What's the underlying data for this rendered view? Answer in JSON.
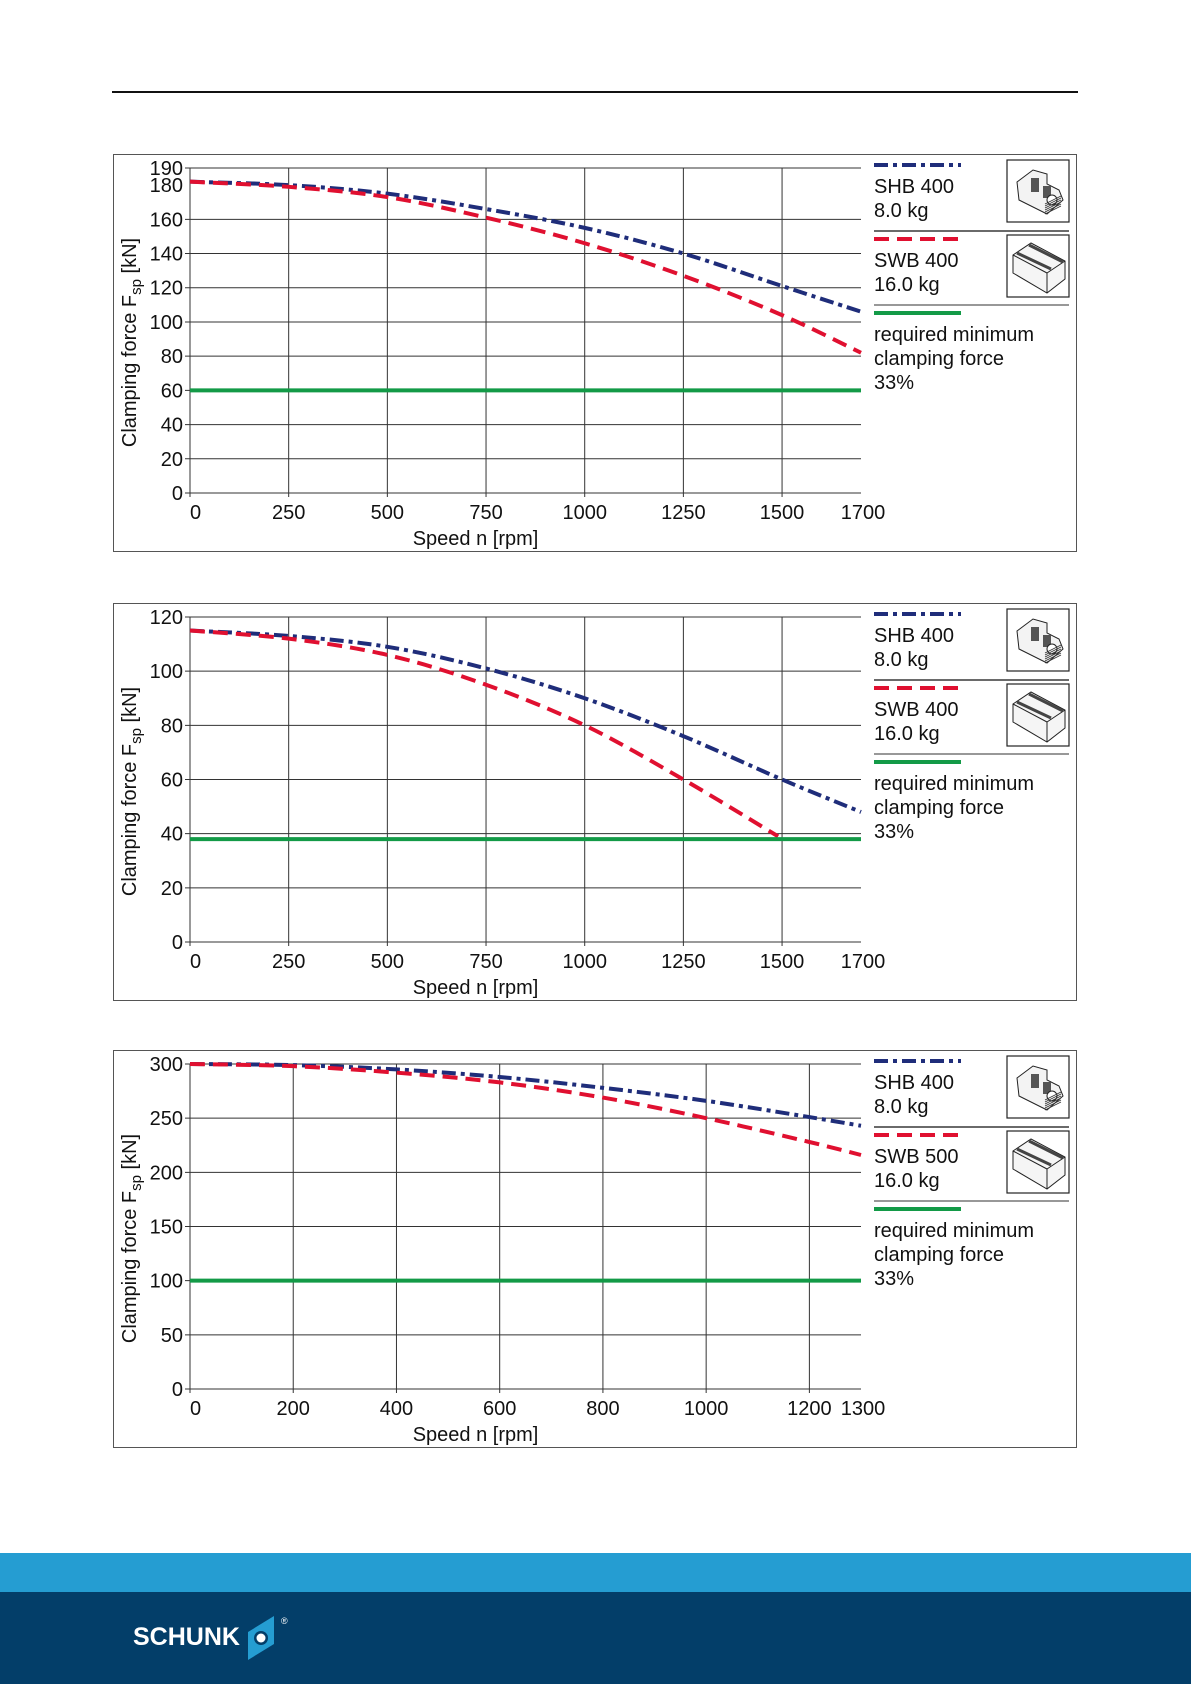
{
  "colors": {
    "shb": "#1f2d7a",
    "swb": "#e01030",
    "min": "#139a47",
    "grid": "#333333",
    "footer_light": "#259dd2",
    "footer_dark": "#033e69"
  },
  "footer": {
    "brand": "SCHUNK",
    "registered": "®"
  },
  "chart_data": [
    {
      "type": "line",
      "title": "",
      "xlabel": "Speed n [rpm]",
      "ylabel_main": "Clamping force F",
      "ylabel_sub": "sp",
      "ylabel_unit": " [kN]",
      "xlim": [
        0,
        1700
      ],
      "ylim": [
        0,
        190
      ],
      "xticks": [
        0,
        250,
        500,
        750,
        1000,
        1250,
        1500,
        1700
      ],
      "yticks": [
        0,
        20,
        40,
        60,
        80,
        100,
        120,
        140,
        160,
        180,
        190
      ],
      "ygrid": [
        0,
        20,
        40,
        60,
        80,
        100,
        120,
        140,
        160,
        190
      ],
      "grid": true,
      "legend_position": "right",
      "series": [
        {
          "name": "SHB 400",
          "weight": "8.0 kg",
          "style": "dash-dot",
          "icon": "hard-jaw-icon",
          "x": [
            0,
            250,
            500,
            750,
            1000,
            1250,
            1500,
            1700
          ],
          "values": [
            182,
            180,
            175,
            166,
            155,
            140,
            121,
            106
          ]
        },
        {
          "name": "SWB 400",
          "weight": "16.0 kg",
          "style": "dashed",
          "icon": "soft-jaw-icon",
          "x": [
            0,
            250,
            500,
            750,
            1000,
            1250,
            1500,
            1700
          ],
          "values": [
            182,
            179,
            173,
            161,
            146,
            127,
            104,
            82
          ]
        },
        {
          "name": "required minimum clamping force 33%",
          "label_lines": [
            "required minimum",
            "clamping force",
            "33%"
          ],
          "style": "solid",
          "x": [
            0,
            1700
          ],
          "values": [
            60,
            60
          ]
        }
      ]
    },
    {
      "type": "line",
      "title": "",
      "xlabel": "Speed n [rpm]",
      "ylabel_main": "Clamping force F",
      "ylabel_sub": "sp",
      "ylabel_unit": " [kN]",
      "xlim": [
        0,
        1700
      ],
      "ylim": [
        0,
        120
      ],
      "xticks": [
        0,
        250,
        500,
        750,
        1000,
        1250,
        1500,
        1700
      ],
      "yticks": [
        0,
        20,
        40,
        60,
        80,
        100,
        120
      ],
      "ygrid": [
        0,
        20,
        40,
        60,
        80,
        100,
        120
      ],
      "grid": true,
      "legend_position": "right",
      "series": [
        {
          "name": "SHB 400",
          "weight": "8.0 kg",
          "style": "dash-dot",
          "icon": "hard-jaw-icon",
          "x": [
            0,
            250,
            500,
            750,
            1000,
            1250,
            1500,
            1700
          ],
          "values": [
            115,
            113,
            109,
            101,
            90,
            76,
            60,
            48
          ]
        },
        {
          "name": "SWB 400",
          "weight": "16.0 kg",
          "style": "dashed",
          "icon": "soft-jaw-icon",
          "x": [
            0,
            250,
            500,
            750,
            1000,
            1250,
            1490
          ],
          "values": [
            115,
            112,
            106,
            95,
            80,
            60,
            39
          ]
        },
        {
          "name": "required minimum clamping force 33%",
          "label_lines": [
            "required minimum",
            "clamping force",
            "33%"
          ],
          "style": "solid",
          "x": [
            0,
            1700
          ],
          "values": [
            38,
            38
          ]
        }
      ]
    },
    {
      "type": "line",
      "title": "",
      "xlabel": "Speed n [rpm]",
      "ylabel_main": "Clamping force F",
      "ylabel_sub": "sp",
      "ylabel_unit": " [kN]",
      "xlim": [
        0,
        1300
      ],
      "ylim": [
        0,
        300
      ],
      "xticks": [
        0,
        200,
        400,
        600,
        800,
        1000,
        1200,
        1300
      ],
      "yticks": [
        0,
        50,
        100,
        150,
        200,
        250,
        300
      ],
      "ygrid": [
        0,
        50,
        100,
        150,
        200,
        250,
        300
      ],
      "grid": true,
      "legend_position": "right",
      "series": [
        {
          "name": "SHB 400",
          "weight": "8.0 kg",
          "style": "dash-dot",
          "icon": "hard-jaw-icon",
          "x": [
            0,
            200,
            400,
            600,
            800,
            1000,
            1200,
            1300
          ],
          "values": [
            300,
            299,
            295,
            288,
            278,
            266,
            251,
            243
          ]
        },
        {
          "name": "SWB 500",
          "weight": "16.0 kg",
          "style": "dashed",
          "icon": "soft-jaw-icon",
          "x": [
            0,
            200,
            400,
            600,
            800,
            1000,
            1200,
            1300
          ],
          "values": [
            300,
            298,
            292,
            283,
            269,
            250,
            228,
            216
          ]
        },
        {
          "name": "required minimum clamping force 33%",
          "label_lines": [
            "required minimum",
            "clamping force",
            "33%"
          ],
          "style": "solid",
          "x": [
            0,
            1300
          ],
          "values": [
            100,
            100
          ]
        }
      ]
    }
  ]
}
